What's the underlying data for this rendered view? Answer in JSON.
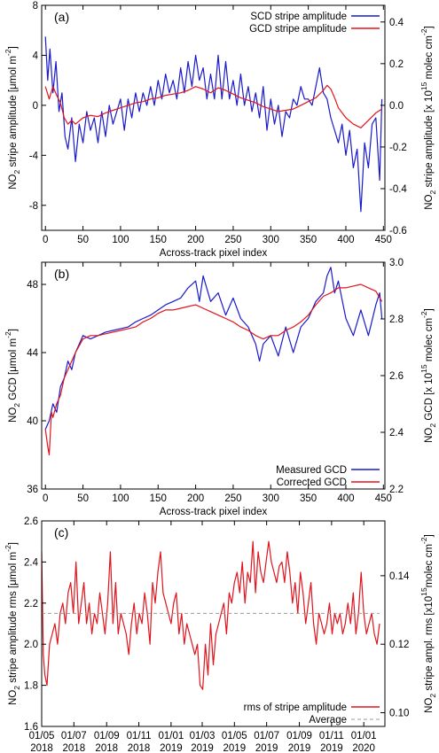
{
  "chart_data": [
    {
      "type": "line",
      "panel_label": "(a)",
      "xlabel": "Across-track pixel index",
      "ylabel_left": "NO₂ stripe amplitude [μmol m⁻²]",
      "ylabel_right": "NO₂ stripe amplitude [x 10¹⁵ molec cm⁻²]",
      "xlim": [
        -5,
        452
      ],
      "ylim": [
        -10,
        8
      ],
      "ylim_right": [
        -0.6,
        0.48
      ],
      "x_ticks": [
        "0",
        "50",
        "100",
        "150",
        "200",
        "250",
        "300",
        "350",
        "400",
        "450"
      ],
      "y_ticks": [
        "-8",
        "-4",
        "0",
        "4",
        "8"
      ],
      "y_ticks_right": [
        "-0.6",
        "-0.4",
        "-0.2",
        "0.0",
        "0.2",
        "0.4"
      ],
      "legend": "top-right",
      "series": [
        {
          "name": "SCD stripe amplitude",
          "color": "#1a1acc",
          "x": [
            0,
            3,
            6,
            10,
            14,
            18,
            22,
            26,
            30,
            35,
            40,
            45,
            50,
            55,
            60,
            65,
            70,
            75,
            80,
            85,
            90,
            95,
            100,
            105,
            110,
            115,
            120,
            125,
            130,
            135,
            140,
            145,
            150,
            155,
            160,
            165,
            170,
            175,
            180,
            185,
            190,
            195,
            200,
            205,
            210,
            215,
            220,
            225,
            230,
            235,
            240,
            245,
            250,
            255,
            260,
            265,
            270,
            275,
            280,
            285,
            290,
            295,
            300,
            305,
            310,
            315,
            320,
            325,
            330,
            335,
            340,
            345,
            350,
            355,
            360,
            365,
            370,
            375,
            380,
            385,
            390,
            395,
            400,
            405,
            410,
            415,
            420,
            425,
            430,
            435,
            440,
            445,
            448
          ],
          "values": [
            5.5,
            2.0,
            4.5,
            1.0,
            3.5,
            -0.5,
            1.0,
            -2.5,
            -3.5,
            -1.0,
            -4.5,
            -1.5,
            -3.0,
            -0.5,
            -2.0,
            -1.0,
            -3.0,
            -0.5,
            -2.5,
            0.0,
            -1.5,
            -0.5,
            0.5,
            -2.0,
            0.5,
            -1.0,
            1.0,
            -0.5,
            1.0,
            0.0,
            1.5,
            0.0,
            2.0,
            0.5,
            2.5,
            1.0,
            2.0,
            0.5,
            3.0,
            1.0,
            3.5,
            1.5,
            4.0,
            2.0,
            3.0,
            0.5,
            2.5,
            0.5,
            4.0,
            0.5,
            3.5,
            0.5,
            2.0,
            0.0,
            2.5,
            0.0,
            1.5,
            -0.5,
            1.0,
            -1.0,
            1.5,
            -2.0,
            0.5,
            -1.5,
            0.0,
            -2.5,
            -0.5,
            -1.0,
            0.5,
            0.0,
            1.5,
            0.5,
            0.5,
            0.0,
            1.5,
            3.0,
            1.0,
            0.5,
            -1.0,
            -2.0,
            -3.0,
            -1.5,
            -4.0,
            -2.0,
            -5.0,
            -3.5,
            -8.5,
            -3.0,
            -5.0,
            -1.5,
            -1.0,
            -6.0,
            0.5
          ]
        },
        {
          "name": "GCD stripe amplitude",
          "color": "#e0141c",
          "x": [
            0,
            5,
            10,
            15,
            20,
            25,
            30,
            35,
            40,
            50,
            60,
            70,
            80,
            90,
            100,
            110,
            120,
            130,
            140,
            150,
            160,
            170,
            180,
            190,
            200,
            210,
            220,
            230,
            240,
            250,
            260,
            270,
            280,
            290,
            300,
            310,
            320,
            330,
            340,
            350,
            360,
            370,
            375,
            380,
            385,
            390,
            400,
            410,
            420,
            430,
            440,
            448
          ],
          "values": [
            1.5,
            0.5,
            1.5,
            0.8,
            0.2,
            -1.0,
            -1.5,
            -1.2,
            -1.5,
            -1.0,
            -0.8,
            -0.9,
            -0.6,
            -0.4,
            -0.2,
            0.0,
            0.2,
            0.3,
            0.5,
            0.6,
            0.8,
            0.9,
            1.0,
            1.2,
            1.5,
            1.3,
            1.0,
            1.4,
            1.2,
            0.9,
            0.6,
            0.4,
            0.2,
            -0.1,
            -0.3,
            -0.5,
            -0.4,
            -0.3,
            0.0,
            0.3,
            0.6,
            1.2,
            1.6,
            1.3,
            0.6,
            -0.2,
            -1.0,
            -1.5,
            -1.8,
            -1.2,
            -0.6,
            -0.3
          ]
        }
      ]
    },
    {
      "type": "line",
      "panel_label": "(b)",
      "xlabel": "Across-track pixel index",
      "ylabel_left": "NO₂ GCD [μmol m⁻²]",
      "ylabel_right": "NO₂ GCD [x 10¹⁵ molec cm⁻²]",
      "xlim": [
        -5,
        452
      ],
      "ylim": [
        36,
        49.3
      ],
      "ylim_right": [
        2.2,
        3.0
      ],
      "x_ticks": [
        "0",
        "50",
        "100",
        "150",
        "200",
        "250",
        "300",
        "350",
        "400",
        "450"
      ],
      "y_ticks": [
        "36",
        "40",
        "44",
        "48"
      ],
      "y_ticks_right": [
        "2.2",
        "2.4",
        "2.6",
        "2.8",
        "3.0"
      ],
      "legend": "bottom-right",
      "series": [
        {
          "name": "Measured GCD",
          "color": "#1a1acc",
          "x": [
            0,
            5,
            10,
            15,
            20,
            25,
            30,
            35,
            40,
            50,
            60,
            70,
            80,
            90,
            100,
            110,
            120,
            130,
            140,
            150,
            160,
            170,
            180,
            190,
            200,
            205,
            210,
            220,
            230,
            240,
            250,
            260,
            270,
            280,
            285,
            290,
            300,
            310,
            320,
            330,
            340,
            350,
            360,
            370,
            375,
            380,
            385,
            390,
            400,
            410,
            420,
            430,
            440,
            445,
            448
          ],
          "values": [
            39.5,
            40.0,
            41.0,
            40.5,
            42.0,
            42.5,
            43.5,
            43.0,
            44.0,
            45.0,
            44.8,
            45.0,
            45.2,
            45.3,
            45.4,
            45.5,
            45.8,
            46.0,
            46.2,
            46.5,
            46.8,
            47.0,
            47.2,
            47.8,
            48.2,
            47.0,
            48.5,
            47.0,
            47.5,
            46.2,
            47.2,
            46.0,
            45.5,
            44.5,
            43.5,
            44.5,
            45.0,
            43.8,
            45.5,
            44.0,
            45.5,
            46.0,
            47.0,
            47.5,
            48.5,
            49.0,
            47.5,
            48.2,
            46.0,
            45.0,
            46.5,
            45.0,
            46.8,
            47.5,
            46.0
          ]
        },
        {
          "name": "Corrected GCD",
          "color": "#e0141c",
          "x": [
            0,
            3,
            5,
            8,
            10,
            15,
            20,
            25,
            30,
            35,
            40,
            50,
            60,
            70,
            80,
            90,
            100,
            110,
            120,
            130,
            140,
            150,
            160,
            170,
            180,
            190,
            200,
            210,
            220,
            230,
            240,
            250,
            260,
            270,
            280,
            290,
            300,
            310,
            320,
            330,
            340,
            350,
            360,
            370,
            380,
            390,
            400,
            410,
            420,
            430,
            440,
            448
          ],
          "values": [
            39.5,
            38.5,
            38.0,
            40.5,
            40.2,
            41.0,
            41.5,
            42.5,
            43.0,
            43.5,
            44.0,
            44.8,
            45.0,
            45.0,
            45.1,
            45.2,
            45.3,
            45.4,
            45.5,
            45.8,
            46.0,
            46.3,
            46.5,
            46.5,
            46.6,
            46.7,
            46.8,
            46.6,
            46.4,
            46.2,
            46.0,
            45.8,
            45.5,
            45.3,
            45.0,
            44.8,
            45.0,
            45.0,
            45.3,
            45.5,
            45.8,
            46.2,
            46.8,
            47.3,
            47.5,
            47.8,
            47.8,
            47.9,
            48.0,
            47.8,
            47.6,
            47.0
          ]
        }
      ]
    },
    {
      "type": "line",
      "panel_label": "(c)",
      "ylabel_left": "NO₂ stripe amplitude rms [μmol m⁻²]",
      "ylabel_right": "NO₂ stripe ampl. rms [x10¹⁵molec cm⁻²]",
      "xlim": [
        0,
        650
      ],
      "ylim": [
        1.6,
        2.6
      ],
      "ylim_right": [
        0.096,
        0.156
      ],
      "x_ticks": [
        {
          "d": "01/05",
          "y": "2018"
        },
        {
          "d": "01/07",
          "y": "2018"
        },
        {
          "d": "01/09",
          "y": "2018"
        },
        {
          "d": "01/11",
          "y": "2018"
        },
        {
          "d": "01/01",
          "y": "2019"
        },
        {
          "d": "01/03",
          "y": "2019"
        },
        {
          "d": "01/05",
          "y": "2019"
        },
        {
          "d": "01/07",
          "y": "2019"
        },
        {
          "d": "01/09",
          "y": "2019"
        },
        {
          "d": "01/11",
          "y": "2019"
        },
        {
          "d": "01/01",
          "y": "2020"
        }
      ],
      "x_tick_days": [
        0,
        61,
        123,
        184,
        245,
        304,
        365,
        426,
        488,
        549,
        610
      ],
      "y_ticks": [
        "1.6",
        "1.8",
        "2.0",
        "2.2",
        "2.4",
        "2.6"
      ],
      "y_ticks_right": [
        "0.10",
        "0.12",
        "0.14"
      ],
      "legend": "bottom-right",
      "series": [
        {
          "name": "rms of stripe amplitude",
          "color": "#e0141c",
          "x": [
            0,
            3,
            6,
            10,
            15,
            20,
            25,
            30,
            35,
            40,
            45,
            50,
            55,
            60,
            65,
            70,
            75,
            80,
            85,
            90,
            95,
            100,
            105,
            110,
            115,
            120,
            125,
            130,
            135,
            140,
            145,
            150,
            155,
            160,
            165,
            170,
            175,
            180,
            185,
            190,
            195,
            200,
            205,
            210,
            215,
            220,
            225,
            230,
            235,
            240,
            245,
            250,
            255,
            260,
            265,
            270,
            275,
            280,
            285,
            290,
            295,
            300,
            305,
            310,
            315,
            320,
            325,
            330,
            335,
            340,
            345,
            350,
            355,
            360,
            365,
            370,
            375,
            380,
            385,
            390,
            395,
            400,
            405,
            410,
            415,
            420,
            425,
            430,
            435,
            440,
            445,
            450,
            455,
            460,
            465,
            470,
            475,
            480,
            485,
            490,
            495,
            500,
            505,
            510,
            515,
            520,
            525,
            530,
            535,
            540,
            545,
            550,
            555,
            560,
            565,
            570,
            575,
            580,
            585,
            590,
            595,
            600,
            605,
            610,
            615,
            620,
            625,
            630,
            635,
            640
          ],
          "values": [
            2.45,
            1.95,
            1.85,
            1.8,
            2.0,
            2.05,
            2.1,
            2.0,
            2.15,
            2.2,
            2.1,
            2.25,
            2.3,
            2.15,
            2.4,
            2.1,
            2.2,
            2.3,
            2.1,
            2.2,
            2.05,
            2.15,
            2.1,
            2.25,
            2.15,
            2.05,
            2.2,
            2.45,
            2.1,
            2.3,
            2.05,
            2.15,
            2.1,
            2.05,
            1.95,
            2.1,
            2.2,
            2.05,
            2.15,
            2.1,
            2.25,
            2.15,
            2.0,
            2.3,
            2.2,
            2.35,
            2.45,
            2.25,
            2.2,
            2.15,
            2.1,
            2.2,
            2.25,
            2.05,
            2.15,
            2.0,
            2.1,
            2.05,
            2.0,
            1.95,
            2.0,
            1.8,
            1.78,
            2.0,
            1.85,
            2.1,
            1.9,
            2.05,
            2.1,
            2.15,
            2.2,
            2.05,
            2.25,
            2.2,
            2.3,
            2.35,
            2.25,
            2.4,
            2.2,
            2.35,
            2.3,
            2.5,
            2.25,
            2.45,
            2.35,
            2.3,
            2.4,
            2.5,
            2.4,
            2.35,
            2.3,
            2.38,
            2.4,
            2.3,
            2.45,
            2.35,
            2.2,
            2.3,
            2.15,
            2.35,
            2.25,
            2.1,
            2.2,
            2.3,
            2.1,
            2.0,
            2.15,
            2.1,
            2.05,
            2.1,
            2.2,
            2.05,
            2.15,
            2.1,
            2.15,
            2.05,
            2.1,
            2.2,
            2.1,
            2.25,
            2.05,
            2.15,
            2.35,
            2.15,
            2.05,
            2.1,
            2.15,
            2.05,
            2.0,
            2.1
          ]
        },
        {
          "name": "Average",
          "color": "#9a9a9a",
          "dash": true,
          "x": [
            0,
            640
          ],
          "values": [
            2.15,
            2.15
          ]
        }
      ]
    }
  ]
}
